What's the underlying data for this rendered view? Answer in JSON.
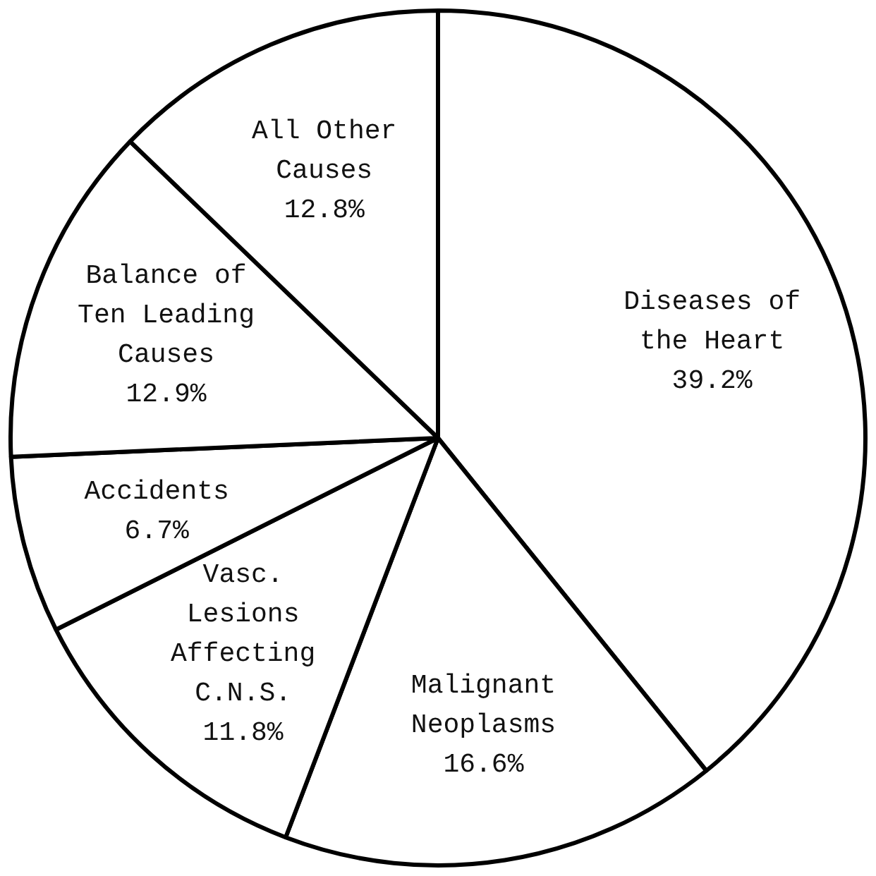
{
  "chart_data": {
    "type": "pie",
    "categories": [
      "Diseases of the Heart",
      "Malignant Neoplasms",
      "Vasc. Lesions Affecting C.N.S.",
      "Accidents",
      "Balance of Ten Leading Causes",
      "All Other Causes"
    ],
    "values": [
      39.2,
      16.6,
      11.8,
      6.7,
      12.9,
      12.8
    ],
    "colors": [
      "#ffffff",
      "#ffffff",
      "#ffffff",
      "#ffffff",
      "#ffffff",
      "#ffffff"
    ],
    "value_labels": [
      "39.2%",
      "16.6%",
      "11.8%",
      "6.7%",
      "12.9%",
      "12.8%"
    ],
    "legend": false
  }
}
